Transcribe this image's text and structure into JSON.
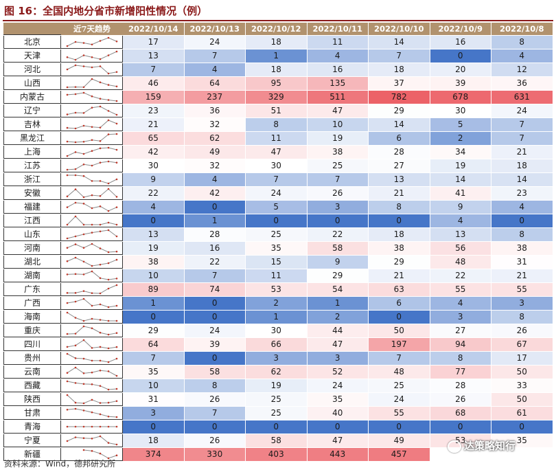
{
  "title": "图 16：全国内地分省市新增阳性情况（例）",
  "source": "资料来源：Wind，德邦研究所",
  "watermark": "达策略知行",
  "chart_data": {
    "type": "table",
    "corner_label": "",
    "trend_label": "近7天趋势",
    "columns": [
      "2022/10/14",
      "2022/10/13",
      "2022/10/12",
      "2022/10/11",
      "2022/10/10",
      "2022/10/9",
      "2022/10/8"
    ],
    "rows": [
      {
        "name": "北京",
        "values": [
          17,
          24,
          18,
          11,
          14,
          16,
          8
        ]
      },
      {
        "name": "天津",
        "values": [
          13,
          7,
          1,
          4,
          7,
          0,
          4
        ]
      },
      {
        "name": "河北",
        "values": [
          7,
          4,
          18,
          16,
          18,
          20,
          12
        ]
      },
      {
        "name": "山西",
        "values": [
          46,
          64,
          95,
          135,
          37,
          39,
          36
        ]
      },
      {
        "name": "内蒙古",
        "values": [
          159,
          237,
          329,
          511,
          782,
          678,
          631
        ]
      },
      {
        "name": "辽宁",
        "values": [
          23,
          36,
          51,
          47,
          29,
          30,
          24
        ]
      },
      {
        "name": "吉林",
        "values": [
          21,
          32,
          8,
          10,
          14,
          5,
          7
        ]
      },
      {
        "name": "黑龙江",
        "values": [
          65,
          62,
          11,
          19,
          6,
          2,
          7
        ]
      },
      {
        "name": "上海",
        "values": [
          42,
          49,
          47,
          38,
          28,
          34,
          21
        ]
      },
      {
        "name": "江苏",
        "values": [
          30,
          32,
          30,
          25,
          27,
          19,
          18
        ]
      },
      {
        "name": "浙江",
        "values": [
          9,
          4,
          7,
          7,
          13,
          14,
          14
        ]
      },
      {
        "name": "安徽",
        "values": [
          22,
          42,
          24,
          26,
          21,
          41,
          23
        ]
      },
      {
        "name": "福建",
        "values": [
          4,
          0,
          5,
          3,
          8,
          9,
          4
        ]
      },
      {
        "name": "江西",
        "values": [
          0,
          1,
          0,
          0,
          0,
          4,
          0
        ]
      },
      {
        "name": "山东",
        "values": [
          13,
          28,
          25,
          22,
          18,
          13,
          8
        ]
      },
      {
        "name": "河南",
        "values": [
          19,
          16,
          35,
          58,
          38,
          56,
          38
        ]
      },
      {
        "name": "湖北",
        "values": [
          38,
          22,
          15,
          9,
          29,
          48,
          31
        ]
      },
      {
        "name": "湖南",
        "values": [
          10,
          7,
          11,
          29,
          21,
          22,
          21
        ]
      },
      {
        "name": "广东",
        "values": [
          89,
          74,
          53,
          54,
          63,
          55,
          55
        ]
      },
      {
        "name": "广西",
        "values": [
          1,
          0,
          2,
          1,
          6,
          4,
          3
        ]
      },
      {
        "name": "海南",
        "values": [
          0,
          0,
          1,
          2,
          0,
          3,
          8
        ]
      },
      {
        "name": "重庆",
        "values": [
          29,
          24,
          30,
          44,
          50,
          27,
          26
        ]
      },
      {
        "name": "四川",
        "values": [
          64,
          39,
          66,
          47,
          197,
          94,
          67
        ]
      },
      {
        "name": "贵州",
        "values": [
          7,
          0,
          3,
          3,
          7,
          8,
          17
        ]
      },
      {
        "name": "云南",
        "values": [
          35,
          58,
          62,
          52,
          48,
          77,
          50
        ]
      },
      {
        "name": "西藏",
        "values": [
          10,
          8,
          19,
          24,
          25,
          28,
          33
        ]
      },
      {
        "name": "陕西",
        "values": [
          31,
          26,
          25,
          35,
          24,
          26,
          50
        ]
      },
      {
        "name": "甘肃",
        "values": [
          3,
          7,
          25,
          40,
          55,
          68,
          61
        ]
      },
      {
        "name": "青海",
        "values": [
          0,
          0,
          0,
          0,
          0,
          0,
          0
        ]
      },
      {
        "name": "宁夏",
        "values": [
          18,
          26,
          58,
          47,
          49,
          53,
          35
        ]
      },
      {
        "name": "新疆",
        "values": [
          374,
          330,
          403,
          443,
          457,
          "",
          ""
        ]
      }
    ]
  }
}
